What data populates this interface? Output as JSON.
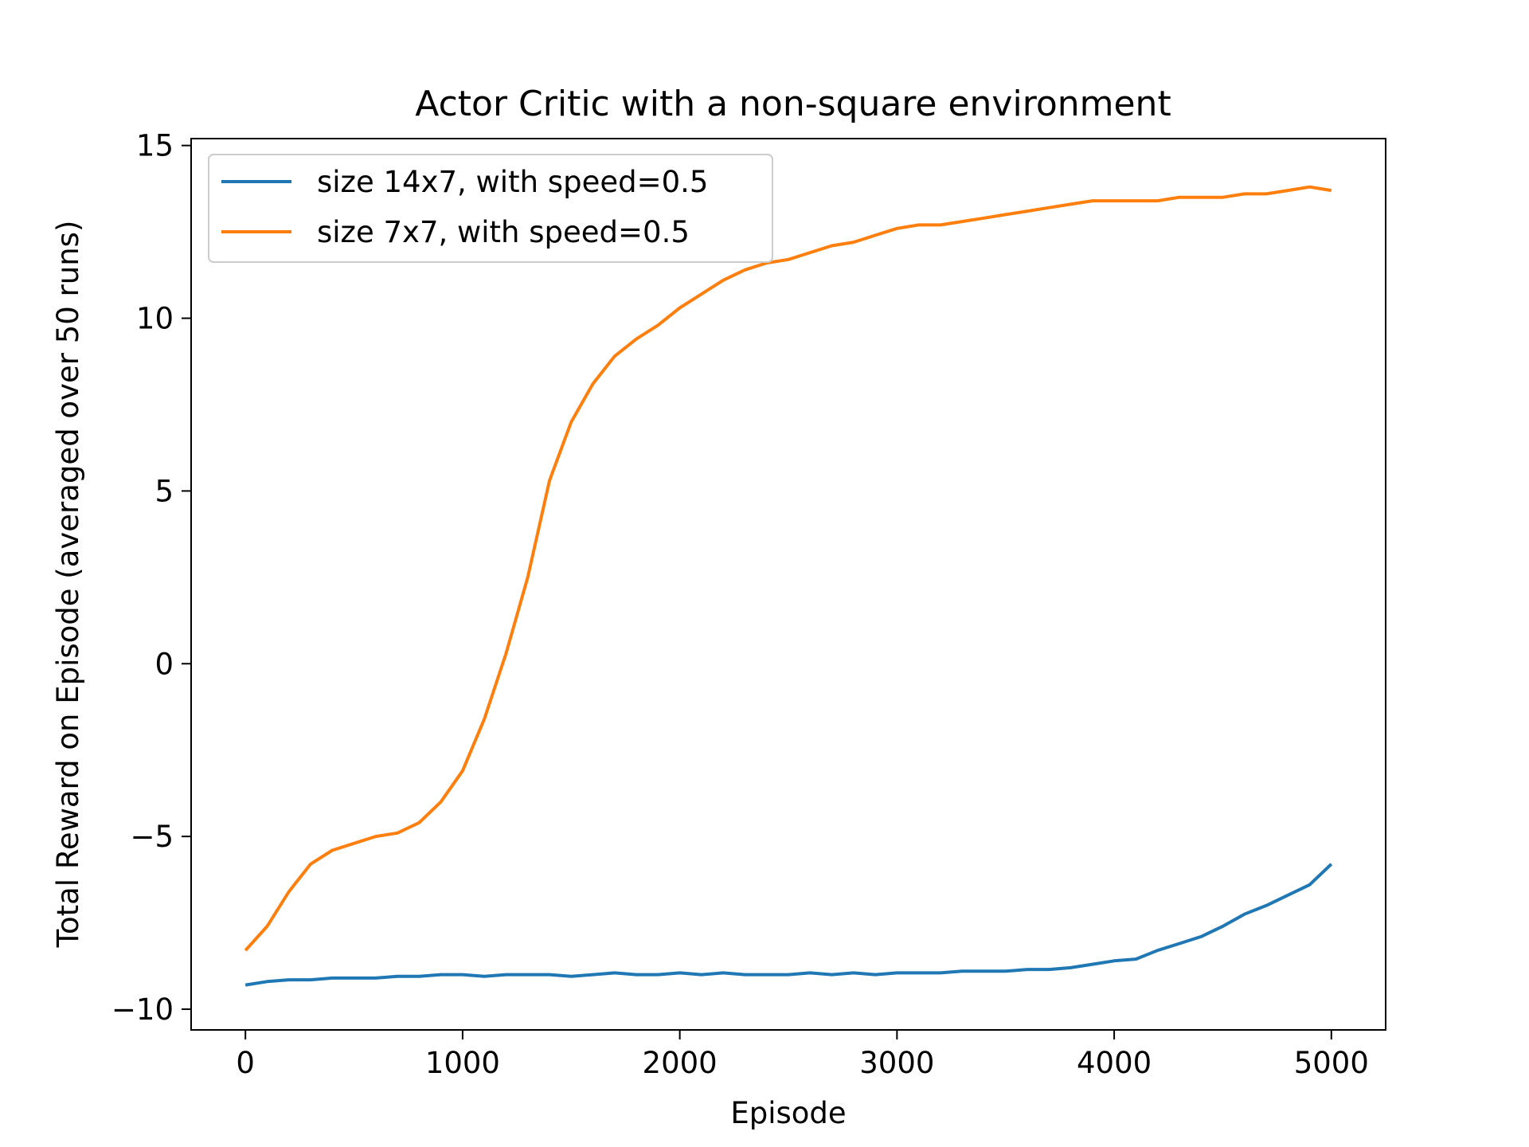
{
  "chart_data": {
    "type": "line",
    "title": "Actor Critic with a non-square environment",
    "xlabel": "Episode",
    "ylabel": "Total Reward on Episode (averaged over 50 runs)",
    "xlim": [
      -250,
      5250
    ],
    "ylim": [
      -10.6,
      15.2
    ],
    "xticks": [
      0,
      1000,
      2000,
      3000,
      4000,
      5000
    ],
    "xtick_labels": [
      "0",
      "1000",
      "2000",
      "3000",
      "4000",
      "5000"
    ],
    "yticks": [
      -10,
      -5,
      0,
      5,
      10,
      15
    ],
    "ytick_labels": [
      "−10",
      "−5",
      "0",
      "5",
      "10",
      "15"
    ],
    "grid": false,
    "legend_position": "top-left",
    "series": [
      {
        "name": "size 14x7, with speed=0.5",
        "color": "#1f77b4",
        "x": [
          0,
          100,
          200,
          300,
          400,
          500,
          600,
          700,
          800,
          900,
          1000,
          1100,
          1200,
          1300,
          1400,
          1500,
          1600,
          1700,
          1800,
          1900,
          2000,
          2100,
          2200,
          2300,
          2400,
          2500,
          2600,
          2700,
          2800,
          2900,
          3000,
          3100,
          3200,
          3300,
          3400,
          3500,
          3600,
          3700,
          3800,
          3900,
          4000,
          4100,
          4200,
          4300,
          4400,
          4500,
          4600,
          4700,
          4800,
          4900,
          5000
        ],
        "y": [
          -9.3,
          -9.2,
          -9.15,
          -9.15,
          -9.1,
          -9.1,
          -9.1,
          -9.05,
          -9.05,
          -9.0,
          -9.0,
          -9.05,
          -9.0,
          -9.0,
          -9.0,
          -9.05,
          -9.0,
          -8.95,
          -9.0,
          -9.0,
          -8.95,
          -9.0,
          -8.95,
          -9.0,
          -9.0,
          -9.0,
          -8.95,
          -9.0,
          -8.95,
          -9.0,
          -8.95,
          -8.95,
          -8.95,
          -8.9,
          -8.9,
          -8.9,
          -8.85,
          -8.85,
          -8.8,
          -8.7,
          -8.6,
          -8.55,
          -8.3,
          -8.1,
          -7.9,
          -7.6,
          -7.25,
          -7.0,
          -6.7,
          -6.4,
          -5.8
        ]
      },
      {
        "name": "size 7x7, with speed=0.5",
        "color": "#ff7f0e",
        "x": [
          0,
          100,
          200,
          300,
          400,
          500,
          600,
          700,
          800,
          900,
          1000,
          1100,
          1200,
          1300,
          1400,
          1500,
          1600,
          1700,
          1800,
          1900,
          2000,
          2100,
          2200,
          2300,
          2400,
          2500,
          2600,
          2700,
          2800,
          2900,
          3000,
          3100,
          3200,
          3300,
          3400,
          3500,
          3600,
          3700,
          3800,
          3900,
          4000,
          4100,
          4200,
          4300,
          4400,
          4500,
          4600,
          4700,
          4800,
          4900,
          5000
        ],
        "y": [
          -8.3,
          -7.6,
          -6.6,
          -5.8,
          -5.4,
          -5.2,
          -5.0,
          -4.9,
          -4.6,
          -4.0,
          -3.1,
          -1.6,
          0.3,
          2.5,
          5.3,
          7.0,
          8.1,
          8.9,
          9.4,
          9.8,
          10.3,
          10.7,
          11.1,
          11.4,
          11.6,
          11.7,
          11.9,
          12.1,
          12.2,
          12.4,
          12.6,
          12.7,
          12.7,
          12.8,
          12.9,
          13.0,
          13.1,
          13.2,
          13.3,
          13.4,
          13.4,
          13.4,
          13.4,
          13.5,
          13.5,
          13.5,
          13.6,
          13.6,
          13.7,
          13.8,
          13.7
        ]
      }
    ]
  }
}
